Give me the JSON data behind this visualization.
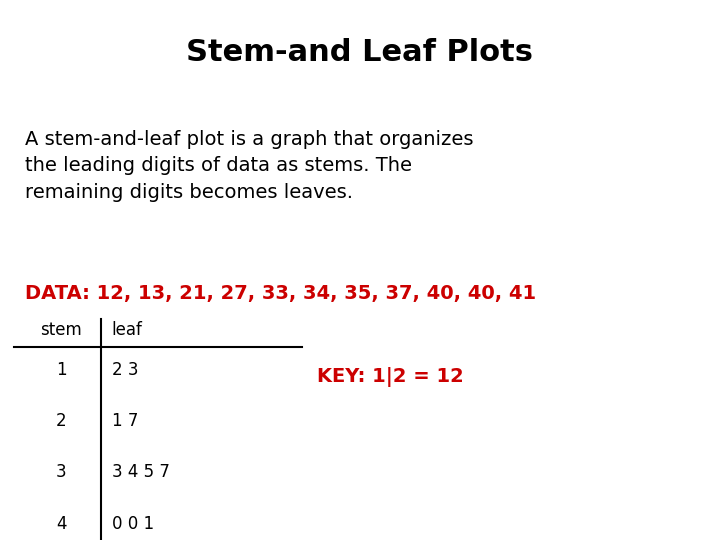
{
  "title": "Stem-and Leaf Plots",
  "title_fontsize": 22,
  "title_fontweight": "bold",
  "background_color": "#ffffff",
  "body_text": "A stem-and-leaf plot is a graph that organizes\nthe leading digits of data as stems. The\nremaining digits becomes leaves.",
  "body_fontsize": 14,
  "data_line": "DATA: 12, 13, 21, 27, 33, 34, 35, 37, 40, 40, 41",
  "data_fontsize": 14,
  "data_color": "#cc0000",
  "table_header": [
    "stem",
    "leaf"
  ],
  "table_rows": [
    [
      "1",
      "2 3"
    ],
    [
      "2",
      "1 7"
    ],
    [
      "3",
      "3 4 5 7"
    ],
    [
      "4",
      "0 0 1"
    ]
  ],
  "table_fontsize": 12,
  "key_text": "KEY: 1|2 = 12",
  "key_fontsize": 14,
  "key_color": "#cc0000",
  "key_fontweight": "bold",
  "fig_width": 7.2,
  "fig_height": 5.4,
  "dpi": 100
}
